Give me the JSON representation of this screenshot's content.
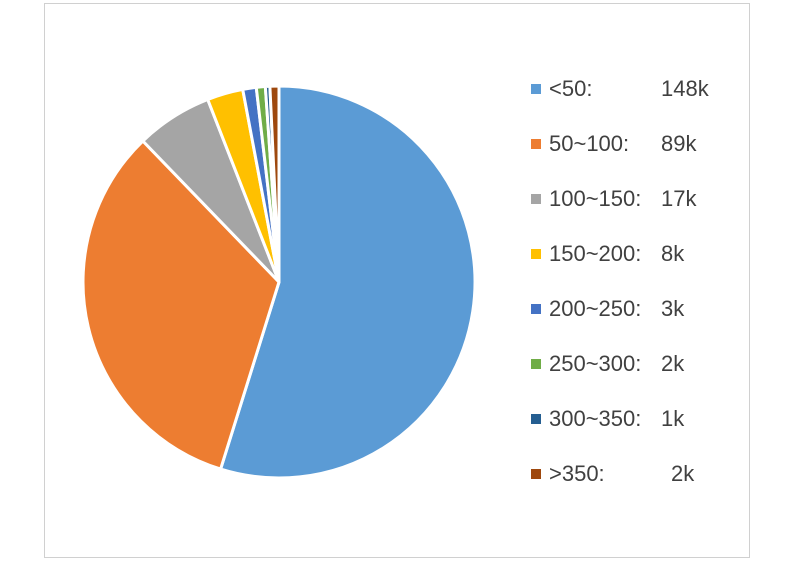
{
  "chart_data": {
    "type": "pie",
    "legend_position": "right",
    "slices": [
      {
        "label": "<50:",
        "value": 148,
        "value_text": "148k",
        "color": "#5B9BD5"
      },
      {
        "label": "50~100:",
        "value": 89,
        "value_text": "89k",
        "color": "#ED7D31"
      },
      {
        "label": "100~150:",
        "value": 17,
        "value_text": "17k",
        "color": "#A5A5A5"
      },
      {
        "label": "150~200:",
        "value": 8,
        "value_text": "8k",
        "color": "#FFC000"
      },
      {
        "label": "200~250:",
        "value": 3,
        "value_text": "3k",
        "color": "#4472C4"
      },
      {
        "label": "250~300:",
        "value": 2,
        "value_text": "2k",
        "color": "#70AD47"
      },
      {
        "label": "300~350:",
        "value": 1,
        "value_text": "1k",
        "color": "#255E91"
      },
      {
        "label": ">350:",
        "value": 2,
        "value_text": "2k",
        "color": "#9E480E"
      }
    ]
  }
}
